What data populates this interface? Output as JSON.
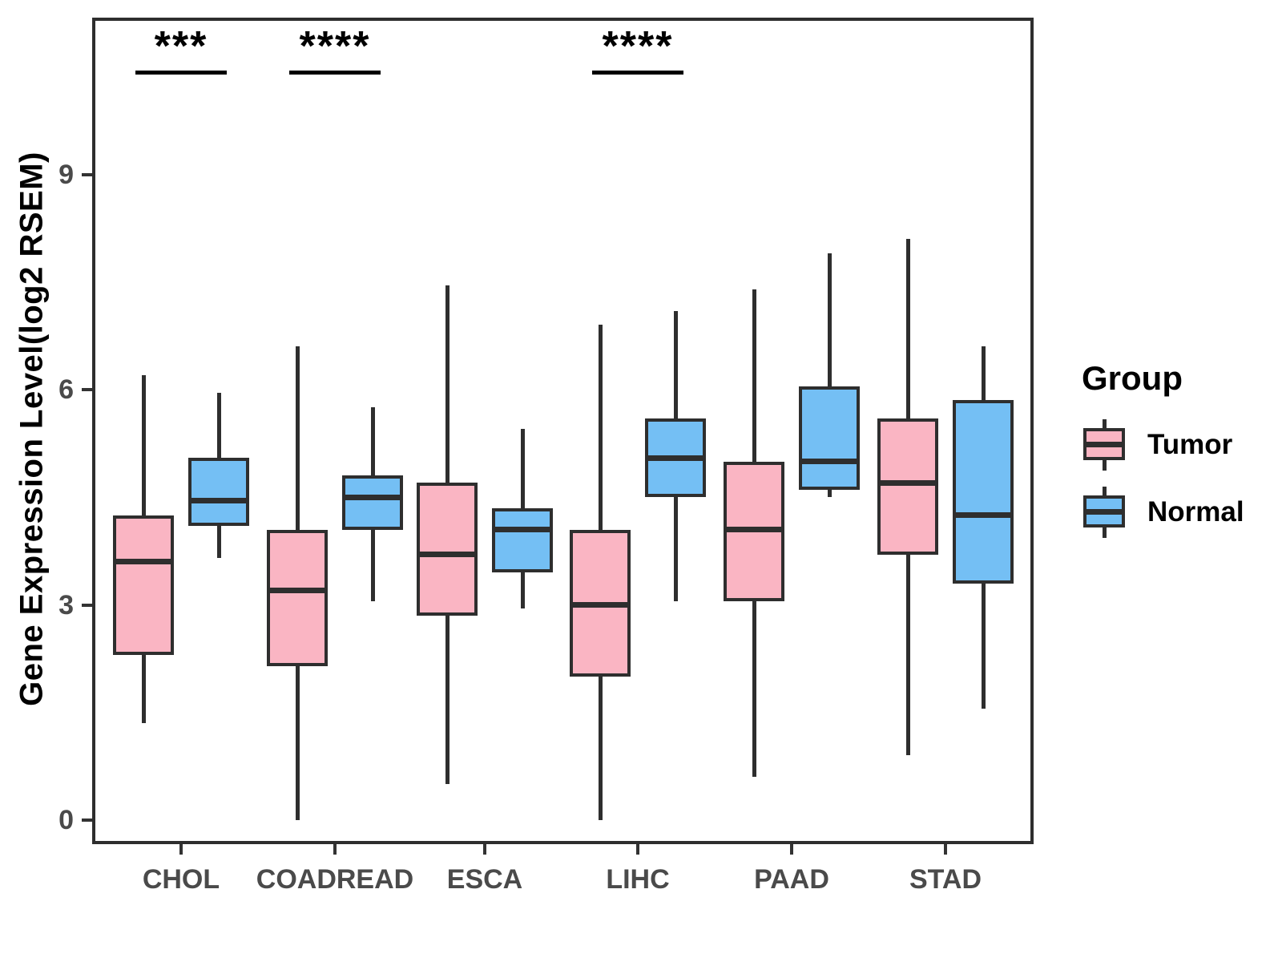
{
  "y_axis": {
    "label": "Gene Expression Level(log2 RSEM)"
  },
  "chart_data": {
    "type": "boxplot",
    "title": "",
    "xlabel": "",
    "ylabel": "Gene Expression Level(log2 RSEM)",
    "categories": [
      "CHOL",
      "COADREAD",
      "ESCA",
      "LIHC",
      "PAAD",
      "STAD"
    ],
    "y_ticks": [
      0,
      3,
      6,
      9
    ],
    "ylim": [
      -0.35,
      11.2
    ],
    "grid": false,
    "legend_position": "right",
    "legend_title": "Group",
    "stroke_color": "#2e2e2e",
    "series": [
      {
        "name": "Tumor",
        "fill": "#FAB5C3",
        "boxes": [
          {
            "category": "CHOL",
            "low": 1.35,
            "q1": 2.3,
            "median": 3.6,
            "q3": 4.25,
            "high": 6.2
          },
          {
            "category": "COADREAD",
            "low": 0.0,
            "q1": 2.15,
            "median": 3.2,
            "q3": 4.05,
            "high": 6.6
          },
          {
            "category": "ESCA",
            "low": 0.5,
            "q1": 2.85,
            "median": 3.7,
            "q3": 4.7,
            "high": 7.45
          },
          {
            "category": "LIHC",
            "low": 0.0,
            "q1": 2.0,
            "median": 3.0,
            "q3": 4.05,
            "high": 6.9
          },
          {
            "category": "PAAD",
            "low": 0.6,
            "q1": 3.05,
            "median": 4.05,
            "q3": 5.0,
            "high": 7.4
          },
          {
            "category": "STAD",
            "low": 0.9,
            "q1": 3.7,
            "median": 4.7,
            "q3": 5.6,
            "high": 8.1
          }
        ]
      },
      {
        "name": "Normal",
        "fill": "#74BFF4",
        "boxes": [
          {
            "category": "CHOL",
            "low": 3.65,
            "q1": 4.1,
            "median": 4.45,
            "q3": 5.05,
            "high": 5.95
          },
          {
            "category": "COADREAD",
            "low": 3.05,
            "q1": 4.05,
            "median": 4.5,
            "q3": 4.8,
            "high": 5.75
          },
          {
            "category": "ESCA",
            "low": 2.95,
            "q1": 3.45,
            "median": 4.05,
            "q3": 4.35,
            "high": 5.45
          },
          {
            "category": "LIHC",
            "low": 3.05,
            "q1": 4.5,
            "median": 5.05,
            "q3": 5.6,
            "high": 7.1
          },
          {
            "category": "PAAD",
            "low": 4.5,
            "q1": 4.6,
            "median": 5.0,
            "q3": 6.05,
            "high": 7.9
          },
          {
            "category": "STAD",
            "low": 1.55,
            "q1": 3.3,
            "median": 4.25,
            "q3": 5.85,
            "high": 6.6
          }
        ]
      }
    ],
    "significance": [
      {
        "category": "CHOL",
        "label": "***"
      },
      {
        "category": "COADREAD",
        "label": "****"
      },
      {
        "category": "LIHC",
        "label": "****"
      }
    ]
  }
}
